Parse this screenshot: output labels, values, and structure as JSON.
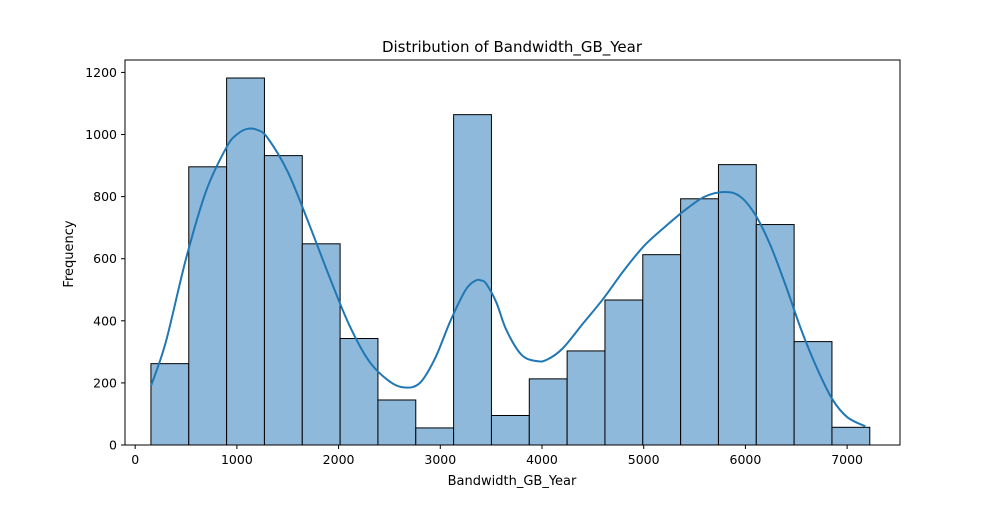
{
  "chart_data": {
    "type": "bar",
    "title": "Distribution of Bandwidth_GB_Year",
    "xlabel": "Bandwidth_GB_Year",
    "ylabel": "Frequency",
    "xlim": [
      -100,
      7520
    ],
    "ylim": [
      0,
      1240
    ],
    "x_ticks": [
      0,
      1000,
      2000,
      3000,
      4000,
      5000,
      6000,
      7000
    ],
    "x_tick_labels": [
      "0",
      "1000",
      "2000",
      "3000",
      "4000",
      "5000",
      "6000",
      "7000"
    ],
    "y_ticks": [
      0,
      200,
      400,
      600,
      800,
      1000,
      1200
    ],
    "y_tick_labels": [
      "0",
      "200",
      "400",
      "600",
      "800",
      "1000",
      "1200"
    ],
    "bins": [
      {
        "x0": 155,
        "x1": 527,
        "value": 262
      },
      {
        "x0": 527,
        "x1": 899,
        "value": 896
      },
      {
        "x0": 899,
        "x1": 1271,
        "value": 1182
      },
      {
        "x0": 1271,
        "x1": 1643,
        "value": 932
      },
      {
        "x0": 1643,
        "x1": 2015,
        "value": 648
      },
      {
        "x0": 2015,
        "x1": 2387,
        "value": 343
      },
      {
        "x0": 2387,
        "x1": 2759,
        "value": 145
      },
      {
        "x0": 2759,
        "x1": 3131,
        "value": 55
      },
      {
        "x0": 3131,
        "x1": 3503,
        "value": 1064
      },
      {
        "x0": 3503,
        "x1": 3875,
        "value": 95
      },
      {
        "x0": 3875,
        "x1": 4247,
        "value": 213
      },
      {
        "x0": 4247,
        "x1": 4619,
        "value": 303
      },
      {
        "x0": 4619,
        "x1": 4991,
        "value": 467
      },
      {
        "x0": 4991,
        "x1": 5363,
        "value": 613
      },
      {
        "x0": 5363,
        "x1": 5735,
        "value": 793
      },
      {
        "x0": 5735,
        "x1": 6107,
        "value": 903
      },
      {
        "x0": 6107,
        "x1": 6479,
        "value": 710
      },
      {
        "x0": 6479,
        "x1": 6851,
        "value": 333
      },
      {
        "x0": 6851,
        "x1": 7223,
        "value": 57
      }
    ],
    "kde": {
      "x": [
        155,
        300,
        500,
        700,
        900,
        1000,
        1100,
        1200,
        1300,
        1500,
        1700,
        1900,
        2100,
        2300,
        2500,
        2650,
        2800,
        2950,
        3100,
        3250,
        3350,
        3400,
        3450,
        3550,
        3650,
        3800,
        3950,
        4050,
        4200,
        4400,
        4600,
        4800,
        5000,
        5200,
        5400,
        5600,
        5800,
        5950,
        6100,
        6250,
        6400,
        6550,
        6700,
        6850,
        7000,
        7180
      ],
      "y": [
        190,
        330,
        600,
        820,
        960,
        1000,
        1018,
        1015,
        990,
        880,
        720,
        550,
        390,
        270,
        205,
        185,
        200,
        280,
        400,
        500,
        530,
        530,
        520,
        460,
        370,
        290,
        270,
        275,
        310,
        390,
        470,
        560,
        640,
        700,
        755,
        800,
        815,
        800,
        740,
        640,
        510,
        370,
        250,
        150,
        90,
        60
      ]
    },
    "colors": {
      "bar_fill": "#8fb9da",
      "bar_edge": "#000000",
      "kde_line": "#1f77b4"
    },
    "grid": false,
    "legend": "none"
  }
}
